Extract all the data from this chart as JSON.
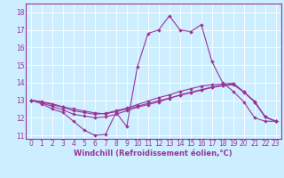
{
  "x": [
    0,
    1,
    2,
    3,
    4,
    5,
    6,
    7,
    8,
    9,
    10,
    11,
    12,
    13,
    14,
    15,
    16,
    17,
    18,
    19,
    20,
    21,
    22,
    23
  ],
  "line1": [
    13.0,
    12.8,
    12.5,
    12.3,
    11.8,
    11.3,
    11.0,
    11.05,
    12.3,
    11.5,
    14.9,
    16.8,
    17.0,
    17.8,
    17.0,
    16.9,
    17.3,
    15.2,
    14.0,
    13.5,
    12.9,
    12.0,
    11.8,
    11.8
  ],
  "line2": [
    13.0,
    12.85,
    12.65,
    12.45,
    12.2,
    12.1,
    12.0,
    12.05,
    12.2,
    12.4,
    12.6,
    12.75,
    12.9,
    13.1,
    13.3,
    13.45,
    13.6,
    13.75,
    13.85,
    13.95,
    13.45,
    12.95,
    12.05,
    11.8
  ],
  "line3": [
    13.0,
    12.9,
    12.75,
    12.6,
    12.4,
    12.3,
    12.2,
    12.25,
    12.4,
    12.55,
    12.75,
    12.95,
    13.15,
    13.3,
    13.5,
    13.65,
    13.8,
    13.88,
    13.92,
    13.96,
    13.48,
    12.9,
    12.05,
    11.8
  ],
  "line4": [
    13.0,
    12.92,
    12.8,
    12.62,
    12.5,
    12.38,
    12.28,
    12.22,
    12.35,
    12.5,
    12.65,
    12.82,
    12.97,
    13.12,
    13.28,
    13.42,
    13.57,
    13.72,
    13.82,
    13.88,
    13.47,
    12.9,
    12.05,
    11.8
  ],
  "bg_color": "#cceeff",
  "grid_color": "#ffffff",
  "line_color": "#993399",
  "xlabel": "Windchill (Refroidissement éolien,°C)",
  "xlim": [
    -0.5,
    23.5
  ],
  "ylim": [
    10.8,
    18.5
  ],
  "yticks": [
    11,
    12,
    13,
    14,
    15,
    16,
    17,
    18
  ],
  "xticks": [
    0,
    1,
    2,
    3,
    4,
    5,
    6,
    7,
    8,
    9,
    10,
    11,
    12,
    13,
    14,
    15,
    16,
    17,
    18,
    19,
    20,
    21,
    22,
    23
  ],
  "tick_fontsize": 5.5,
  "xlabel_fontsize": 6.0
}
